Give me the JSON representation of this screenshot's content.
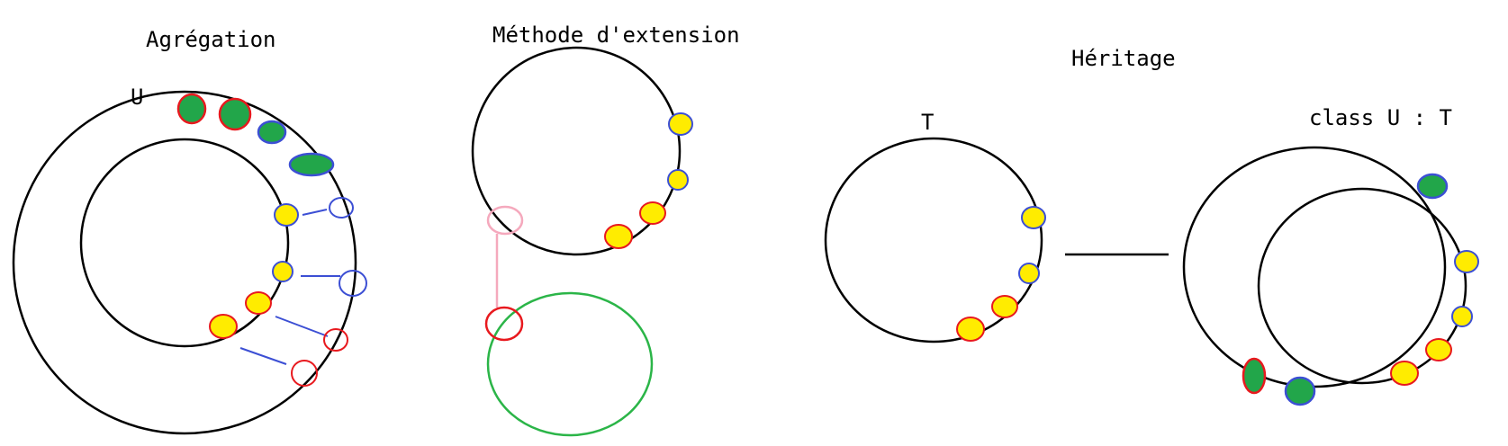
{
  "colors": {
    "stroke": "#000000",
    "yellow": "#ffec00",
    "green": "#22a64a",
    "red": "#e8191e",
    "blue": "#3c4fd4",
    "pink": "#f5a9bd",
    "ext_green": "#2bb548",
    "background": "#ffffff"
  },
  "sections": {
    "aggregation": {
      "title": "Agrégation",
      "outer_label": "U"
    },
    "extension": {
      "title": "Méthode d'extension"
    },
    "inheritance": {
      "title": "Héritage",
      "base_label": "T",
      "derived_label": "class U : T"
    }
  }
}
